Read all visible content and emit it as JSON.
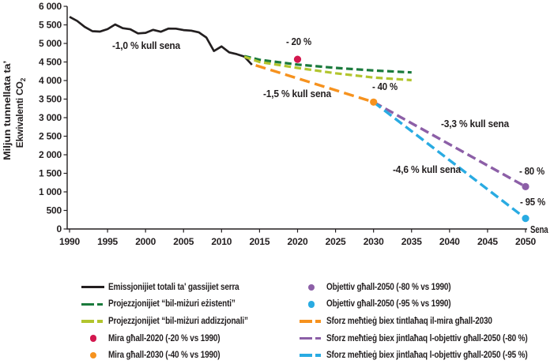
{
  "colors": {
    "black": "#231f20",
    "wem_green": "#1a7a3c",
    "wam_green": "#b2c52e",
    "red": "#d3174e",
    "orange": "#f6921e",
    "purple": "#8c5fa7",
    "cyan": "#29abe2",
    "axis": "#231f20"
  },
  "axes": {
    "x_label": "Sena",
    "y_label_line1": "Miljun tunnellata ta’",
    "y_label_line2_main": "Ekwivalenti CO",
    "y_label_line2_sub": "2",
    "x_ticks": [
      "1990",
      "1995",
      "2000",
      "2005",
      "2010",
      "2015",
      "2020",
      "2025",
      "2030",
      "2035",
      "2040",
      "2045",
      "2050"
    ],
    "y_ticks": [
      "0",
      "500",
      "1 000",
      "1 500",
      "2 000",
      "2 500",
      "3 000",
      "3 500",
      "4 000",
      "4 500",
      "5 000",
      "5 500",
      "6 000"
    ]
  },
  "chart_data": {
    "type": "line",
    "title": "",
    "xlabel": "Sena",
    "ylabel": "Miljun tunnellata ta’ Ekwivalenti CO2",
    "xlim": [
      1990,
      2050
    ],
    "ylim": [
      0,
      6000
    ],
    "x_tick_step": 5,
    "y_tick_step": 500,
    "grid": false,
    "legend_position": "bottom",
    "series": [
      {
        "id": "historical",
        "name": "Emissjonijiet totali ta' gassijiet serra",
        "color_key": "black",
        "dash": null,
        "width": 2.7,
        "points": [
          [
            1990,
            5716
          ],
          [
            1991,
            5606
          ],
          [
            1992,
            5445
          ],
          [
            1993,
            5330
          ],
          [
            1994,
            5320
          ],
          [
            1995,
            5386
          ],
          [
            1996,
            5510
          ],
          [
            1997,
            5410
          ],
          [
            1998,
            5380
          ],
          [
            1999,
            5270
          ],
          [
            2000,
            5285
          ],
          [
            2001,
            5365
          ],
          [
            2002,
            5315
          ],
          [
            2003,
            5400
          ],
          [
            2004,
            5398
          ],
          [
            2005,
            5360
          ],
          [
            2006,
            5345
          ],
          [
            2007,
            5300
          ],
          [
            2008,
            5160
          ],
          [
            2009,
            4795
          ],
          [
            2010,
            4920
          ],
          [
            2011,
            4760
          ],
          [
            2012,
            4710
          ],
          [
            2013,
            4645
          ],
          [
            2014,
            4425
          ]
        ]
      },
      {
        "id": "wem",
        "name": "Projezzjonijiet “bil-miżuri eżistenti”",
        "color_key": "wem_green",
        "dash": "8.5 4.5",
        "width": 3.2,
        "points": [
          [
            2013,
            4660
          ],
          [
            2015,
            4560
          ],
          [
            2020,
            4430
          ],
          [
            2025,
            4340
          ],
          [
            2030,
            4270
          ],
          [
            2035,
            4220
          ]
        ]
      },
      {
        "id": "wam",
        "name": "Projezzjonijiet “bil-miżuri addizzjonali”",
        "color_key": "wam_green",
        "dash": "8.5 4.5",
        "width": 3.2,
        "points": [
          [
            2013,
            4640
          ],
          [
            2015,
            4500
          ],
          [
            2020,
            4340
          ],
          [
            2025,
            4195
          ],
          [
            2030,
            4080
          ],
          [
            2035,
            4010
          ]
        ]
      },
      {
        "id": "effort-2030",
        "name": "Sforz meħtieġ biex tintlaħaq il-mira għall-2030",
        "color_key": "orange",
        "dash": "13 6.5",
        "width": 3.4,
        "points": [
          [
            2014.5,
            4410
          ],
          [
            2030,
            3420
          ]
        ]
      },
      {
        "id": "effort-2050-80",
        "name": "Sforz meħtieġ biex jintlaħaq l-objettiv għall-2050 (-80 %)",
        "color_key": "purple",
        "dash": "11.5 5.5",
        "width": 3.4,
        "points": [
          [
            2030,
            3420
          ],
          [
            2050,
            1140
          ]
        ]
      },
      {
        "id": "effort-2050-95",
        "name": "Sforz meħtieġ biex jintlaħaq l-objettiv għall-2050 (-95 %)",
        "color_key": "cyan",
        "dash": "11.5 5.5",
        "width": 3.4,
        "points": [
          [
            2030,
            3420
          ],
          [
            2050,
            286
          ]
        ]
      }
    ],
    "markers": [
      {
        "id": "target-2020",
        "name": "Mira għall-2020 (-20 % vs 1990)",
        "x": 2020,
        "y": 4573,
        "color_key": "red",
        "r": 4.6
      },
      {
        "id": "target-2030",
        "name": "Mira għall-2030 (-40 % vs 1990)",
        "x": 2030,
        "y": 3420,
        "color_key": "orange",
        "r": 4.6
      },
      {
        "id": "objective-2050-80",
        "name": "Objettiv għall-2050 (-80 % vs 1990)",
        "x": 2050,
        "y": 1140,
        "color_key": "purple",
        "r": 4.6
      },
      {
        "id": "objective-2050-95",
        "name": "Objettiv għall-2050 (-95 % vs 1990)",
        "x": 2050,
        "y": 286,
        "color_key": "cyan",
        "r": 4.6
      }
    ],
    "annotations": [
      {
        "text": "-1,0 % kull sena",
        "x": 185,
        "y": 62
      },
      {
        "text": "- 20 %",
        "x": 378,
        "y": 57
      },
      {
        "text": "-1,5 % kull sena",
        "x": 376,
        "y": 123
      },
      {
        "text": "- 40 %",
        "x": 487,
        "y": 114
      },
      {
        "text": "-3,3 % kull sena",
        "x": 601,
        "y": 161
      },
      {
        "text": "-4,6 % kull sena",
        "x": 540,
        "y": 219
      },
      {
        "text": "- 80 %",
        "x": 673,
        "y": 221
      },
      {
        "text": "- 95 %",
        "x": 674,
        "y": 260
      }
    ]
  },
  "legend": {
    "columns": [
      {
        "items": [
          {
            "marker": "solid",
            "color_key": "black",
            "label": "Emissjonijiet totali ta' gassijiet serra"
          },
          {
            "marker": "dash",
            "color_key": "wem_green",
            "label": "Projezzjonijiet “bil-miżuri eżistenti”"
          },
          {
            "marker": "dash",
            "color_key": "wam_green",
            "label": "Projezzjonijiet “bil-miżuri addizzjonali”"
          },
          {
            "marker": "dot",
            "color_key": "red",
            "label": "Mira għall-2020 (-20 % vs 1990)"
          },
          {
            "marker": "dot",
            "color_key": "orange",
            "label": "Mira għall-2030 (-40 % vs 1990)"
          }
        ]
      },
      {
        "items": [
          {
            "marker": "dot",
            "color_key": "purple",
            "label": "Objettiv għall-2050 (-80 % vs 1990)"
          },
          {
            "marker": "dot",
            "color_key": "cyan",
            "label": "Objettiv għall-2050 (-95 % vs 1990)"
          },
          {
            "marker": "dash",
            "color_key": "orange",
            "label": "Sforz meħtieġ biex tintlaħaq il-mira għall-2030"
          },
          {
            "marker": "dash",
            "color_key": "purple",
            "label": "Sforz meħtieġ biex jintlaħaq l-objettiv għall-2050 (-80 %)"
          },
          {
            "marker": "dash",
            "color_key": "cyan",
            "label": "Sforz meħtieġ biex jintlaħaq l-objettiv għall-2050 (-95 %)"
          }
        ]
      }
    ]
  }
}
